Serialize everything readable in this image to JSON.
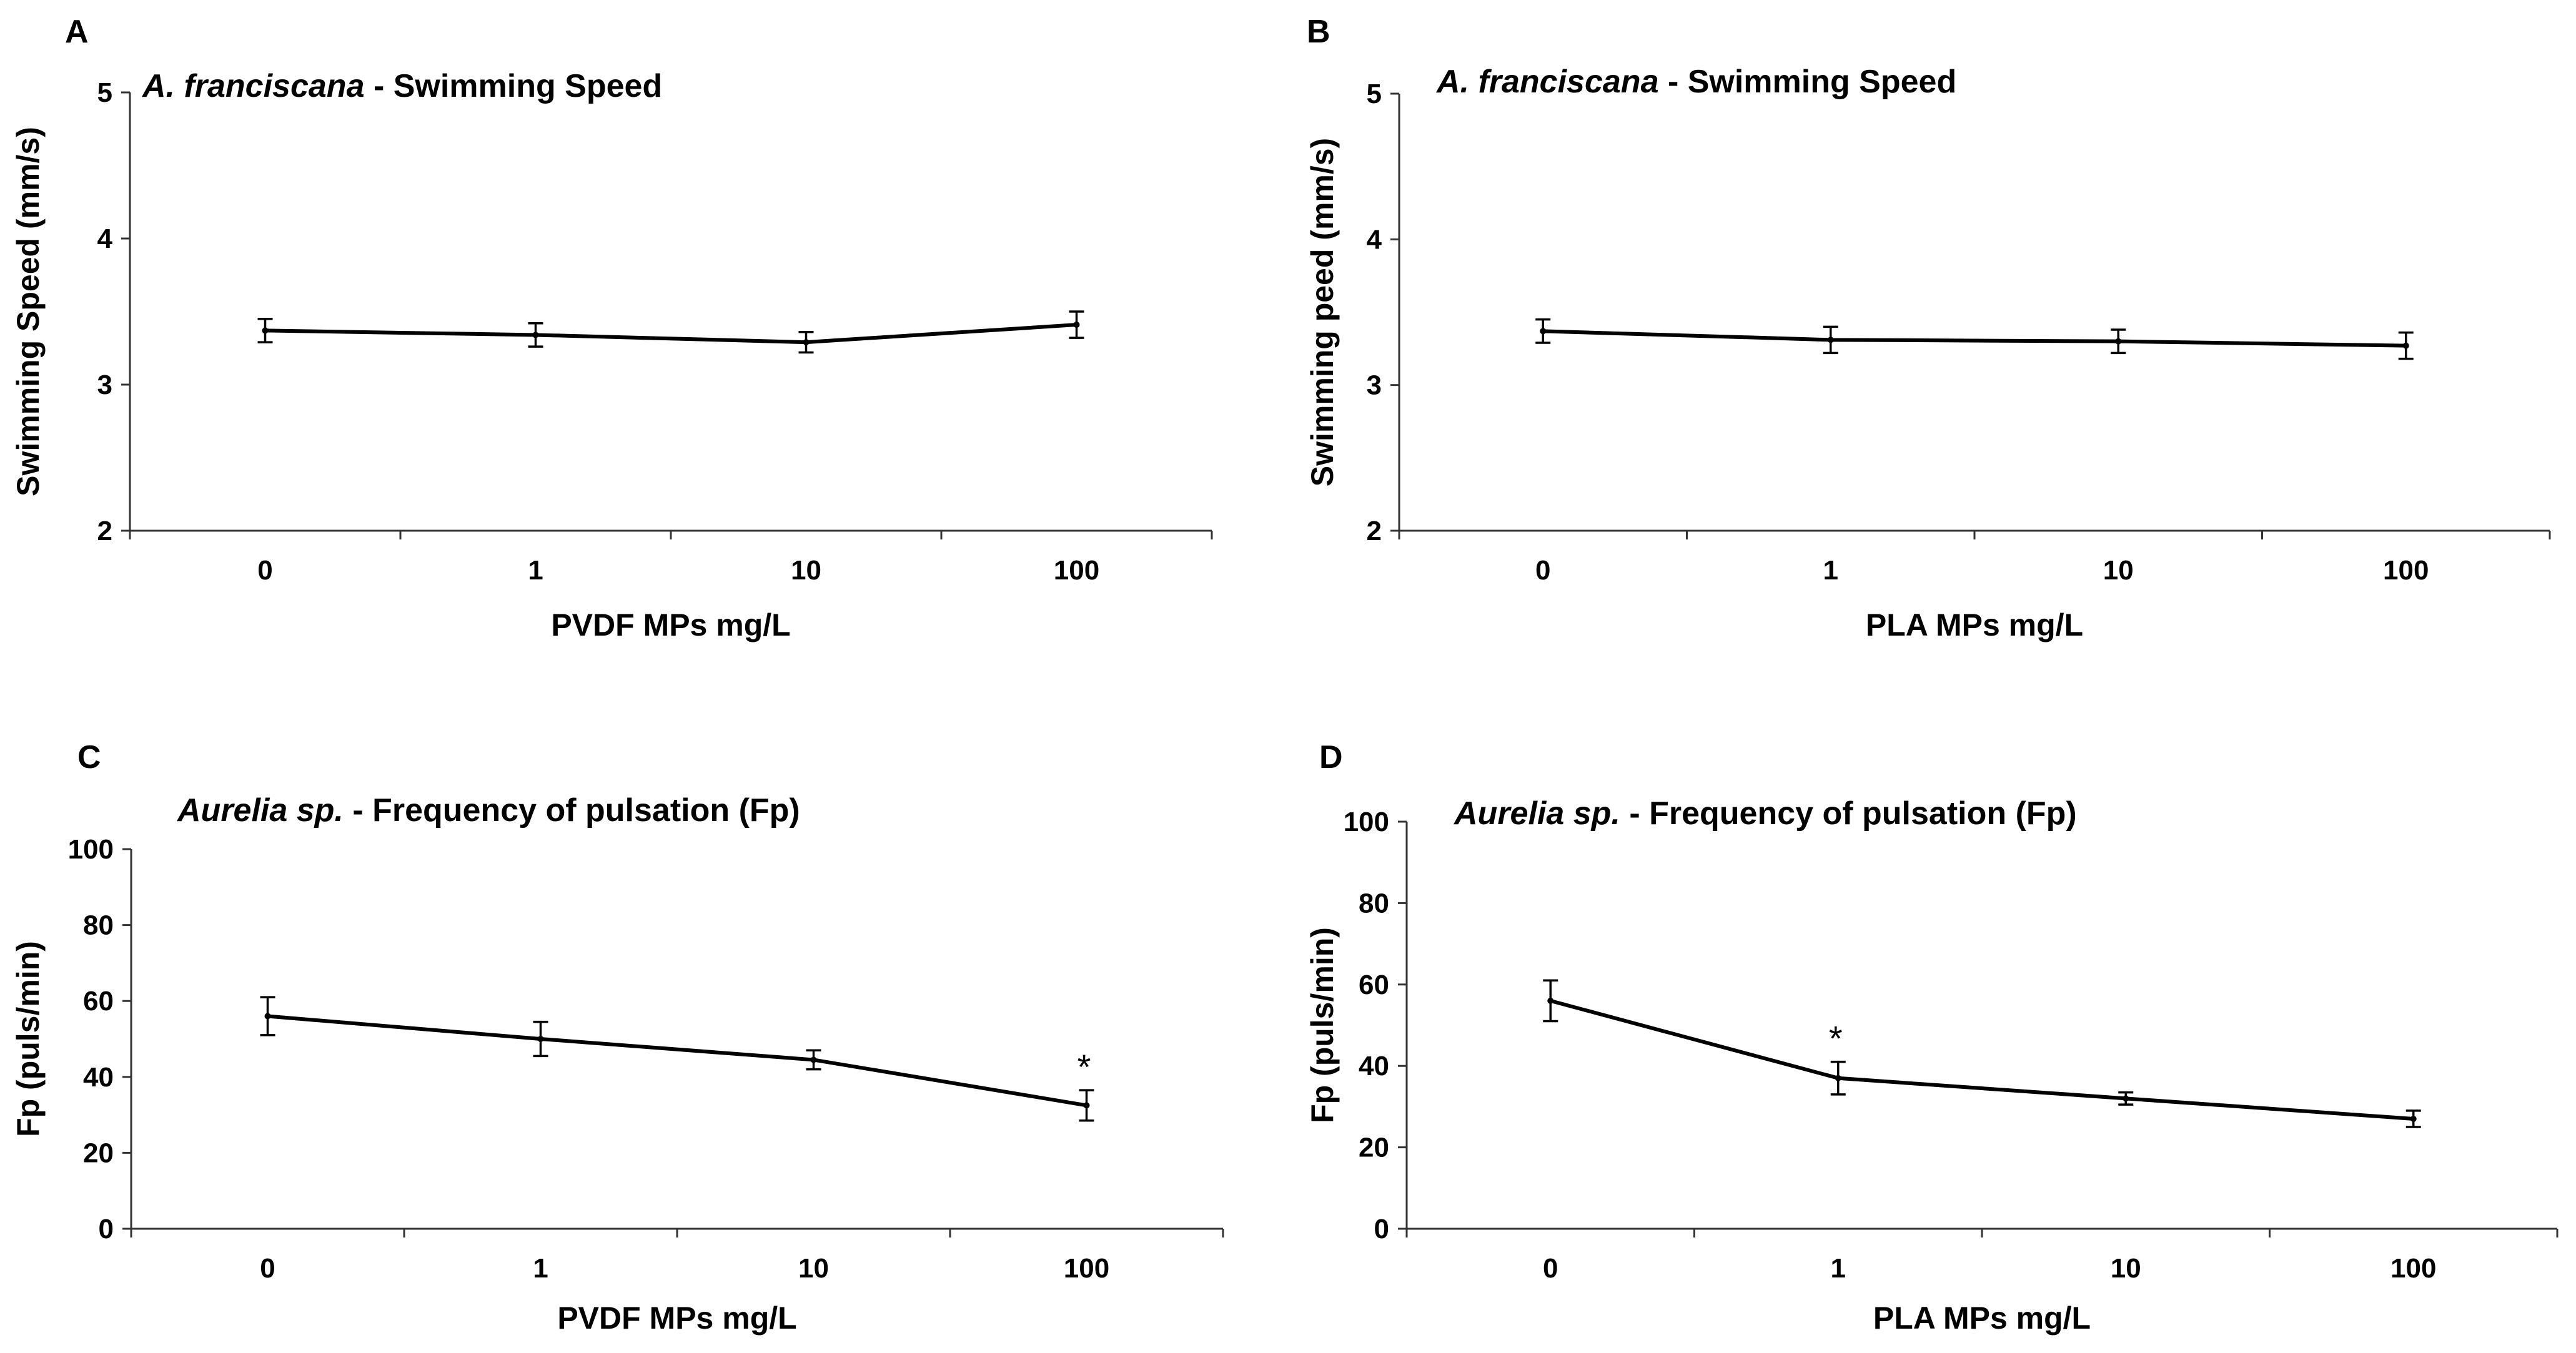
{
  "chart_data": [
    {
      "type": "line",
      "panel": "A",
      "title_italic": "A. franciscana",
      "title_rest": " - Swimming Speed",
      "xlabel": "PVDF MPs mg/L",
      "ylabel": "Swimming Speed (mm/s)",
      "categories": [
        "0",
        "1",
        "10",
        "100"
      ],
      "values": [
        3.37,
        3.34,
        3.29,
        3.41
      ],
      "errors": [
        0.08,
        0.08,
        0.07,
        0.09
      ],
      "ylim": [
        2,
        5
      ],
      "yticks": [
        "2",
        "3",
        "4",
        "5"
      ],
      "significant": [
        false,
        false,
        false,
        false
      ],
      "sig_marker": "*",
      "grid": false
    },
    {
      "type": "line",
      "panel": "B",
      "title_italic": "A. franciscana",
      "title_rest": " - Swimming Speed",
      "xlabel": "PLA MPs mg/L",
      "ylabel": "Swimming peed (mm/s)",
      "categories": [
        "0",
        "1",
        "10",
        "100"
      ],
      "values": [
        3.37,
        3.31,
        3.3,
        3.27
      ],
      "errors": [
        0.08,
        0.09,
        0.08,
        0.09
      ],
      "ylim": [
        2,
        5
      ],
      "yticks": [
        "2",
        "3",
        "4",
        "5"
      ],
      "significant": [
        false,
        false,
        false,
        false
      ],
      "sig_marker": "*",
      "grid": false
    },
    {
      "type": "line",
      "panel": "C",
      "title_italic": "Aurelia sp.",
      "title_rest": " - Frequency of pulsation (Fp)",
      "xlabel": "PVDF MPs mg/L",
      "ylabel": "Fp (puls/min)",
      "categories": [
        "0",
        "1",
        "10",
        "100"
      ],
      "values": [
        56,
        50,
        44.5,
        32.5
      ],
      "errors": [
        5,
        4.5,
        2.5,
        4
      ],
      "ylim": [
        0,
        100
      ],
      "yticks": [
        "0",
        "20",
        "40",
        "60",
        "80",
        "100"
      ],
      "significant": [
        false,
        false,
        false,
        true
      ],
      "sig_marker": "*",
      "grid": false
    },
    {
      "type": "line",
      "panel": "D",
      "title_italic": "Aurelia sp.",
      "title_rest": " - Frequency of pulsation (Fp)",
      "xlabel": "PLA MPs mg/L",
      "ylabel": "Fp (puls/min)",
      "categories": [
        "0",
        "1",
        "10",
        "100"
      ],
      "values": [
        56,
        37,
        32,
        27
      ],
      "errors": [
        5,
        4,
        1.5,
        2
      ],
      "ylim": [
        0,
        100
      ],
      "yticks": [
        "0",
        "20",
        "40",
        "60",
        "80",
        "100"
      ],
      "significant": [
        false,
        true,
        false,
        false
      ],
      "sig_marker": "*",
      "grid": false
    }
  ]
}
